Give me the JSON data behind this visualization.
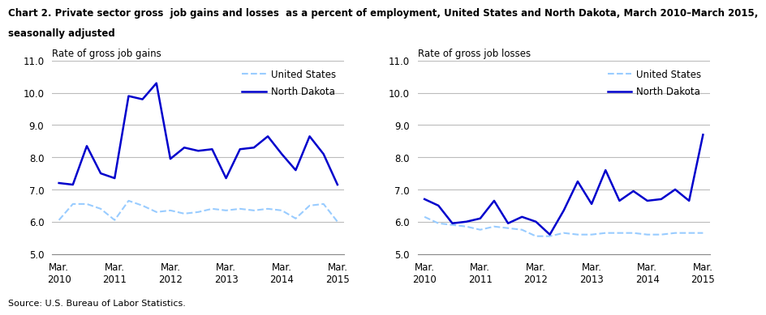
{
  "title_line1": "Chart 2. Private sector gross  job gains and losses  as a percent of employment, United States and North Dakota, March 2010–March 2015,",
  "title_line2": "seasonally adjusted",
  "source": "Source: U.S. Bureau of Labor Statistics.",
  "left_ylabel": "Rate of gross job gains",
  "right_ylabel": "Rate of gross job losses",
  "x_labels": [
    "Mar.\n2010",
    "Mar.\n2011",
    "Mar.\n2012",
    "Mar.\n2013",
    "Mar.\n2014",
    "Mar.\n2015"
  ],
  "x_ticks": [
    0,
    4,
    8,
    12,
    16,
    20
  ],
  "gains_nd": [
    7.2,
    7.15,
    8.35,
    7.5,
    7.35,
    9.9,
    9.8,
    10.3,
    7.95,
    8.3,
    8.2,
    8.25,
    7.35,
    8.25,
    8.3,
    8.65,
    8.1,
    7.6,
    8.65,
    8.1,
    7.15
  ],
  "gains_us": [
    6.05,
    6.55,
    6.55,
    6.4,
    6.05,
    6.65,
    6.5,
    6.3,
    6.35,
    6.25,
    6.3,
    6.4,
    6.35,
    6.4,
    6.35,
    6.4,
    6.35,
    6.1,
    6.5,
    6.55,
    6.0
  ],
  "losses_nd": [
    6.7,
    6.5,
    5.95,
    6.0,
    6.1,
    6.65,
    5.95,
    6.15,
    6.0,
    5.6,
    6.35,
    7.25,
    6.55,
    7.6,
    6.65,
    6.95,
    6.65,
    6.7,
    7.0,
    6.65,
    8.7
  ],
  "losses_us": [
    6.15,
    5.95,
    5.9,
    5.85,
    5.75,
    5.85,
    5.8,
    5.75,
    5.55,
    5.55,
    5.65,
    5.6,
    5.6,
    5.65,
    5.65,
    5.65,
    5.6,
    5.6,
    5.65,
    5.65,
    5.65
  ],
  "ylim": [
    5.0,
    11.0
  ],
  "yticks": [
    5.0,
    6.0,
    7.0,
    8.0,
    9.0,
    10.0,
    11.0
  ],
  "nd_color": "#0000CC",
  "us_color": "#99CCFF",
  "legend_us": "United States",
  "legend_nd": "North Dakota"
}
